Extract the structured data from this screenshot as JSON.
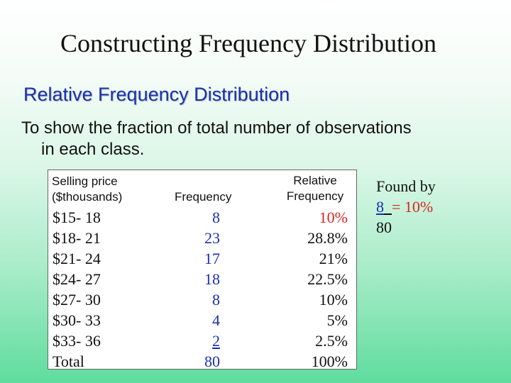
{
  "title": "Constructing Frequency Distribution",
  "subtitle": "Relative Frequency Distribution",
  "body": {
    "line1": "To show the fraction of total number of observations",
    "line2": "in each class."
  },
  "table": {
    "headers": {
      "price_line1": "Selling price",
      "price_line2": "($thousands)",
      "frequency": "Frequency",
      "relative_line1": "Relative",
      "relative_line2": "Frequency"
    },
    "rows": [
      {
        "class": "$15- 18",
        "frequency": "8",
        "relative": "10%"
      },
      {
        "class": "$18- 21",
        "frequency": "23",
        "relative": "28.8%"
      },
      {
        "class": "$21- 24",
        "frequency": "17",
        "relative": "21%"
      },
      {
        "class": "$24- 27",
        "frequency": "18",
        "relative": "22.5%"
      },
      {
        "class": "$27- 30",
        "frequency": "8",
        "relative": "10%"
      },
      {
        "class": "$30- 33",
        "frequency": "4",
        "relative": "5%"
      },
      {
        "class": "$33- 36",
        "frequency": "2",
        "relative": "2.5%"
      }
    ],
    "total": {
      "class": "Total",
      "frequency": "80",
      "relative": "100%"
    }
  },
  "found_by": {
    "label": "Found by",
    "numerator": "8",
    "equals": "= 10%",
    "denominator": "80"
  },
  "colors": {
    "blue": "#1a2fb0",
    "red": "#d8261e"
  }
}
